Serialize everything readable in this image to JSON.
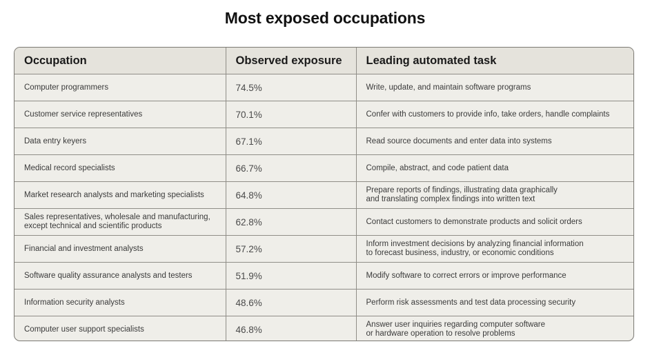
{
  "title": "Most exposed occupations",
  "table": {
    "headers": {
      "occupation": "Occupation",
      "exposure": "Observed exposure",
      "task": "Leading automated task"
    },
    "rows": [
      {
        "occupation": "Computer programmers",
        "exposure": "74.5%",
        "task": "Write, update, and maintain software programs"
      },
      {
        "occupation": "Customer service representatives",
        "exposure": "70.1%",
        "task": "Confer with customers to provide info, take orders, handle complaints"
      },
      {
        "occupation": "Data entry keyers",
        "exposure": "67.1%",
        "task": "Read source documents and enter data into systems"
      },
      {
        "occupation": "Medical record specialists",
        "exposure": "66.7%",
        "task": "Compile, abstract, and code patient data"
      },
      {
        "occupation": "Market research analysts and marketing specialists",
        "exposure": "64.8%",
        "task": "Prepare reports of findings, illustrating data graphically\nand translating complex findings into written text"
      },
      {
        "occupation": "Sales representatives, wholesale and manufacturing,\nexcept technical and scientific products",
        "exposure": "62.8%",
        "task": "Contact customers to demonstrate products and solicit orders"
      },
      {
        "occupation": "Financial and investment analysts",
        "exposure": "57.2%",
        "task": "Inform investment decisions by analyzing financial information\nto forecast business, industry, or economic conditions"
      },
      {
        "occupation": "Software quality assurance analysts and testers",
        "exposure": "51.9%",
        "task": "Modify software to correct errors or improve performance"
      },
      {
        "occupation": "Information security analysts",
        "exposure": "48.6%",
        "task": "Perform risk assessments and test data processing security"
      },
      {
        "occupation": "Computer user support specialists",
        "exposure": "46.8%",
        "task": "Answer user inquiries regarding computer software\nor hardware operation to resolve problems"
      }
    ]
  }
}
